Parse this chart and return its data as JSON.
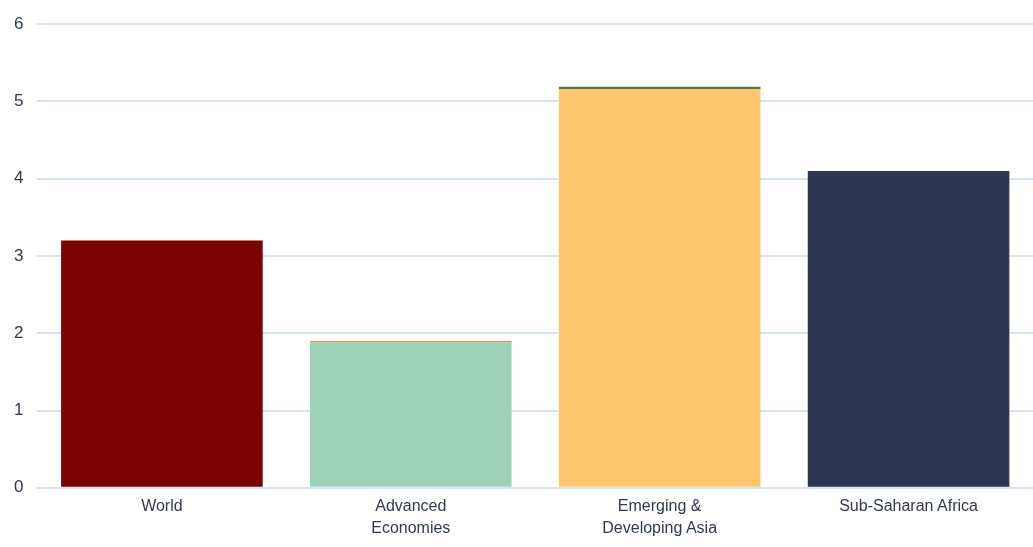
{
  "chart_data": {
    "type": "bar",
    "categories": [
      "World",
      "Advanced Economies",
      "Emerging & Developing Asia",
      "Sub-Saharan Africa"
    ],
    "stacked": true,
    "series": [
      {
        "colors": [
          "#7a0400",
          "#9cd3b8",
          "#fec66c",
          "#2f3652"
        ],
        "values": [
          3.2,
          1.88,
          5.16,
          4.1
        ]
      },
      {
        "colors": [
          "#7a0400",
          "#e8845a",
          "#4d7a4d",
          "#2f3652"
        ],
        "values": [
          null,
          0.02,
          0.03,
          null
        ]
      }
    ],
    "ylim": [
      0,
      6
    ],
    "yticks": [
      0,
      1,
      2,
      3,
      4,
      5,
      6
    ],
    "grid": "y",
    "legend": false
  }
}
